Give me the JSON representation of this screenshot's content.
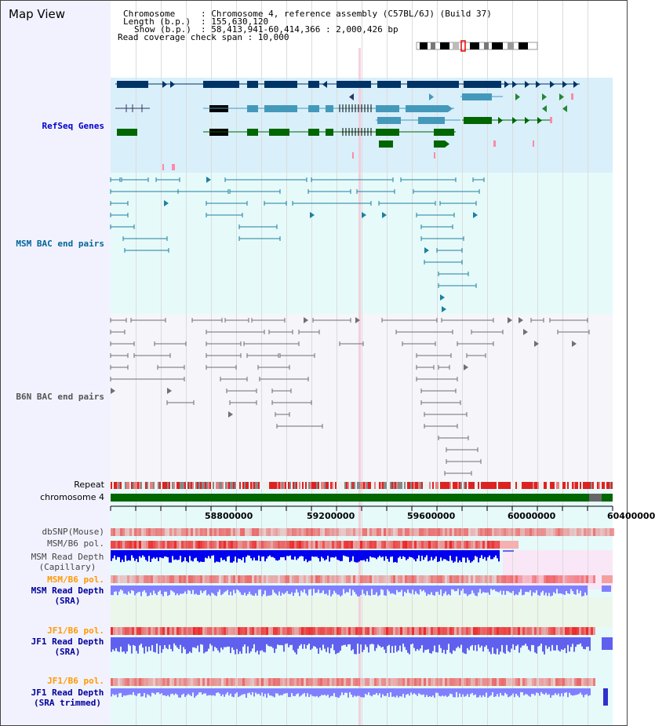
{
  "view": {
    "title": "Map View"
  },
  "info": {
    "chromosome_key": "Chromosome",
    "chromosome_val": ": Chromosome 4, reference assembly (C57BL/6J) (Build 37)",
    "length_key": "Length (b.p.)",
    "length_val": ": 155,630,120",
    "show_key": "Show (b.p.)",
    "show_val": ": 58,413,941-60,414,366 : 2,000,426 bp",
    "coverage": "Read coverage check span : 10,000"
  },
  "tracks": {
    "refseq": "RefSeq Genes",
    "msm_bac": "MSM BAC end pairs",
    "b6n_bac": "B6N BAC end pairs",
    "repeat": "Repeat",
    "chromosome": "chromosome 4",
    "dbsnp": "dbSNP(Mouse)",
    "msm_b6_pol": "MSM/B6 pol.",
    "msm_depth_cap": "MSM Read Depth\n(Capillary)",
    "msm_b6_pol2": "MSM/B6 pol.",
    "msm_depth_sra": "MSM Read Depth\n(SRA)",
    "jf1_b6_pol": "JF1/B6 pol.",
    "jf1_depth_sra": "JF1 Read Depth\n(SRA)",
    "jf1_b6_pol2": "JF1/B6 pol.",
    "jf1_depth_trim": "JF1 Read Depth\n(SRA trimmed)"
  },
  "axis": {
    "ticks": [
      "58800000",
      "59200000",
      "59600000",
      "60000000",
      "60400000"
    ]
  },
  "colors": {
    "refseq_label": "#0000cc",
    "msm_label": "#006699",
    "b6n_label": "#555555",
    "depth_label": "#000099",
    "pol_label": "#ff9900",
    "refseq_bg": "#d9effa",
    "msm_bg": "#e6fafa",
    "b6n_bg": "#f5f5fa",
    "chrom_green": "#006600"
  }
}
